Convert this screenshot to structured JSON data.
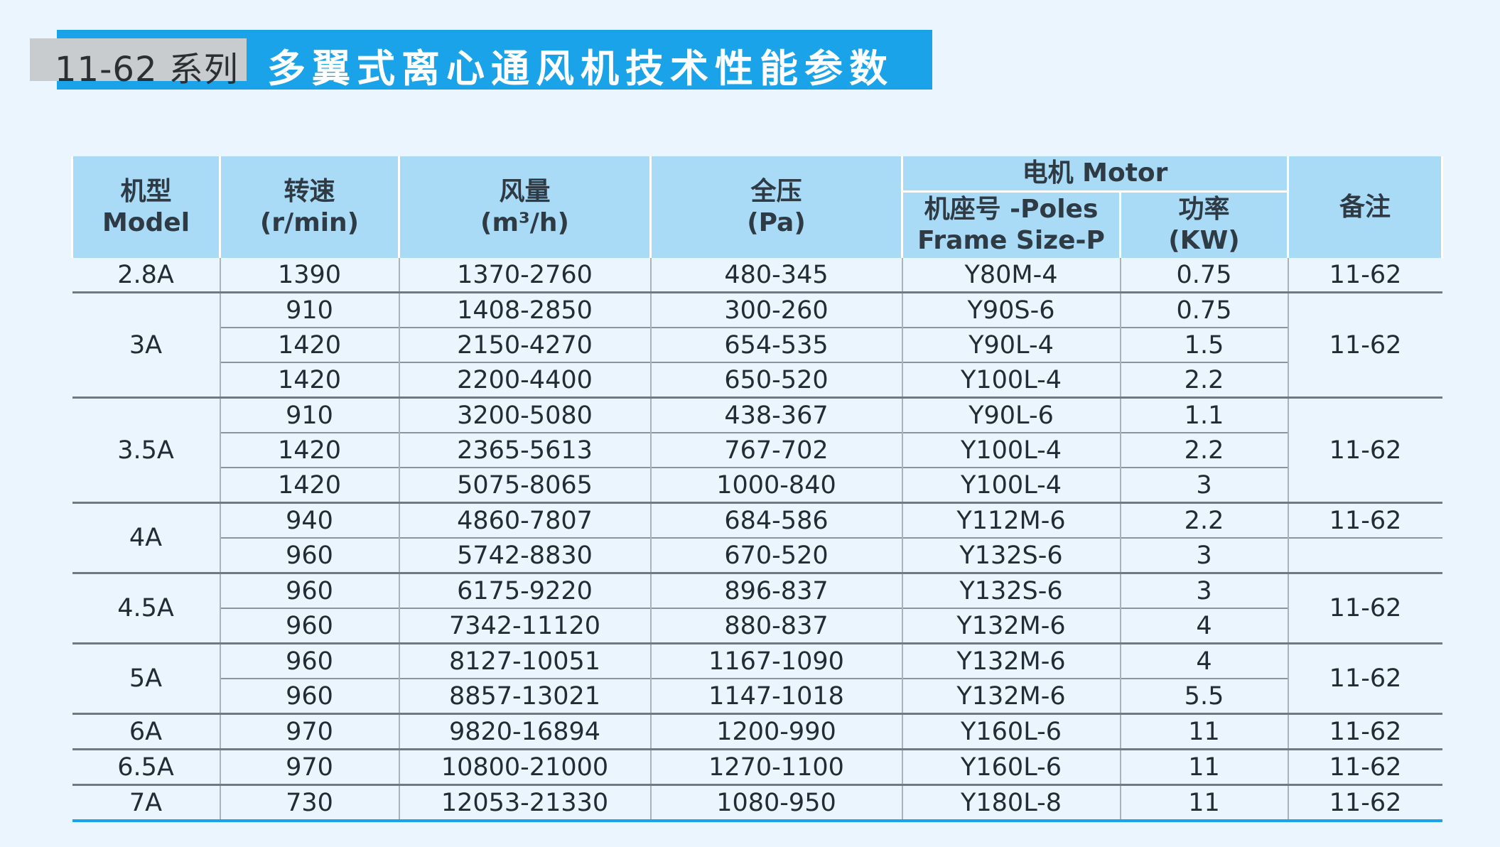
{
  "title": {
    "series": "11-62 系列",
    "main": "多翼式离心通风机技术性能参数"
  },
  "headers": {
    "model": "机型\nModel",
    "speed": "转速\n(r/min)",
    "airflow": "风量\n(m³/h)",
    "pressure": "全压\n(Pa)",
    "motor": "电机 Motor",
    "frame": "机座号 -Poles\nFrame Size-P",
    "power": "功率\n(KW)",
    "remark": "备注"
  },
  "groups": [
    {
      "model": "2.8A",
      "rows": [
        {
          "speed": "1390",
          "airflow": "1370-2760",
          "pressure": "480-345",
          "frame": "Y80M-4",
          "power": "0.75"
        }
      ],
      "remarks": [
        {
          "text": "11-62",
          "span": 1
        }
      ]
    },
    {
      "model": "3A",
      "rows": [
        {
          "speed": "910",
          "airflow": "1408-2850",
          "pressure": "300-260",
          "frame": "Y90S-6",
          "power": "0.75"
        },
        {
          "speed": "1420",
          "airflow": "2150-4270",
          "pressure": "654-535",
          "frame": "Y90L-4",
          "power": "1.5"
        },
        {
          "speed": "1420",
          "airflow": "2200-4400",
          "pressure": "650-520",
          "frame": "Y100L-4",
          "power": "2.2"
        }
      ],
      "remarks": [
        {
          "text": "11-62",
          "span": 3
        }
      ]
    },
    {
      "model": "3.5A",
      "rows": [
        {
          "speed": "910",
          "airflow": "3200-5080",
          "pressure": "438-367",
          "frame": "Y90L-6",
          "power": "1.1"
        },
        {
          "speed": "1420",
          "airflow": "2365-5613",
          "pressure": "767-702",
          "frame": "Y100L-4",
          "power": "2.2"
        },
        {
          "speed": "1420",
          "airflow": "5075-8065",
          "pressure": "1000-840",
          "frame": "Y100L-4",
          "power": "3"
        }
      ],
      "remarks": [
        {
          "text": "11-62",
          "span": 3
        }
      ]
    },
    {
      "model": "4A",
      "rows": [
        {
          "speed": "940",
          "airflow": "4860-7807",
          "pressure": "684-586",
          "frame": "Y112M-6",
          "power": "2.2"
        },
        {
          "speed": "960",
          "airflow": "5742-8830",
          "pressure": "670-520",
          "frame": "Y132S-6",
          "power": "3"
        }
      ],
      "remarks": [
        {
          "text": "11-62",
          "span": 1
        },
        {
          "text": "",
          "span": 1
        }
      ]
    },
    {
      "model": "4.5A",
      "rows": [
        {
          "speed": "960",
          "airflow": "6175-9220",
          "pressure": "896-837",
          "frame": "Y132S-6",
          "power": "3"
        },
        {
          "speed": "960",
          "airflow": "7342-11120",
          "pressure": "880-837",
          "frame": "Y132M-6",
          "power": "4"
        }
      ],
      "remarks": [
        {
          "text": "11-62",
          "span": 2
        }
      ]
    },
    {
      "model": "5A",
      "rows": [
        {
          "speed": "960",
          "airflow": "8127-10051",
          "pressure": "1167-1090",
          "frame": "Y132M-6",
          "power": "4"
        },
        {
          "speed": "960",
          "airflow": "8857-13021",
          "pressure": "1147-1018",
          "frame": "Y132M-6",
          "power": "5.5"
        }
      ],
      "remarks": [
        {
          "text": "11-62",
          "span": 2
        }
      ]
    },
    {
      "model": "6A",
      "rows": [
        {
          "speed": "970",
          "airflow": "9820-16894",
          "pressure": "1200-990",
          "frame": "Y160L-6",
          "power": "11"
        }
      ],
      "remarks": [
        {
          "text": "11-62",
          "span": 1
        }
      ]
    },
    {
      "model": "6.5A",
      "rows": [
        {
          "speed": "970",
          "airflow": "10800-21000",
          "pressure": "1270-1100",
          "frame": "Y160L-6",
          "power": "11"
        }
      ],
      "remarks": [
        {
          "text": "11-62",
          "span": 1
        }
      ]
    },
    {
      "model": "7A",
      "rows": [
        {
          "speed": "730",
          "airflow": "12053-21330",
          "pressure": "1080-950",
          "frame": "Y180L-8",
          "power": "11"
        }
      ],
      "remarks": [
        {
          "text": "11-62",
          "span": 1
        }
      ]
    }
  ]
}
